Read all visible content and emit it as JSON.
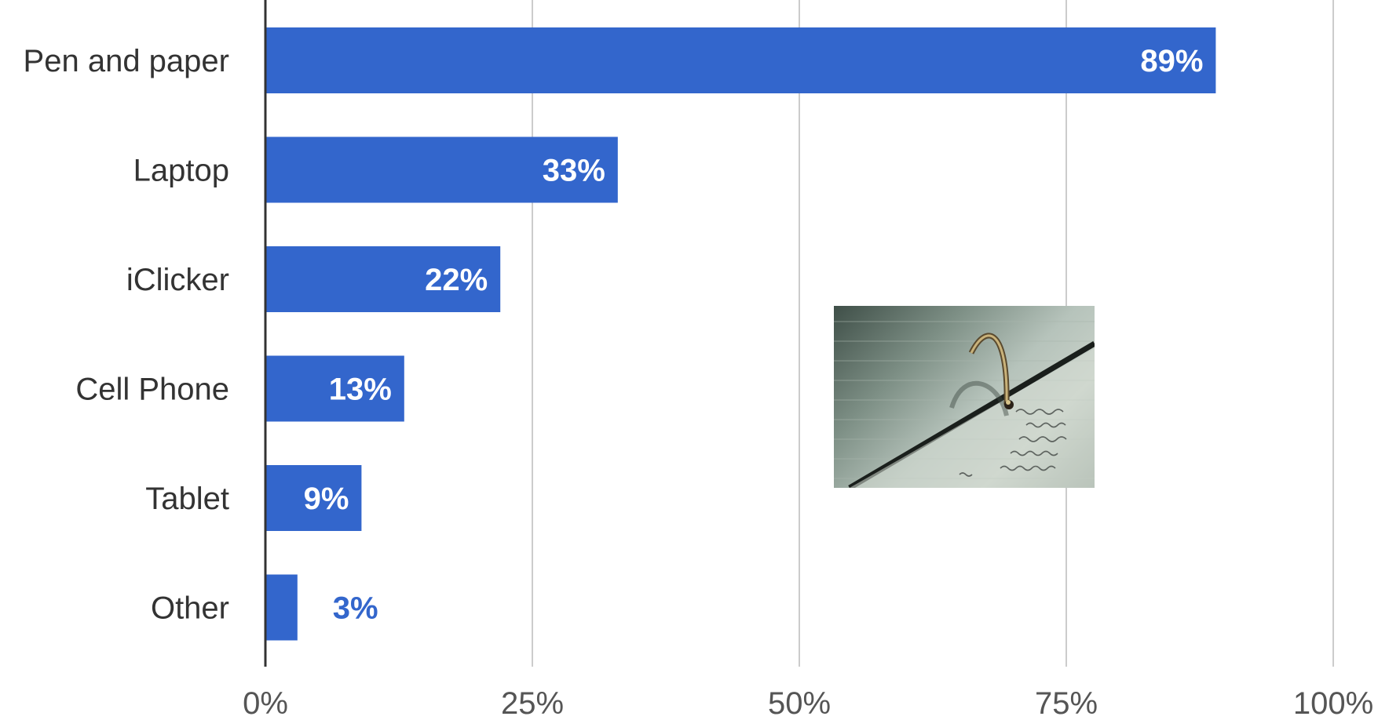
{
  "chart_data": {
    "type": "bar",
    "orientation": "horizontal",
    "categories": [
      "Pen and paper",
      "Laptop",
      "iClicker",
      "Cell Phone",
      "Tablet",
      "Other"
    ],
    "values": [
      89,
      33,
      22,
      13,
      9,
      3
    ],
    "value_labels": [
      "89%",
      "33%",
      "22%",
      "13%",
      "9%",
      "3%"
    ],
    "xlim": [
      0,
      100
    ],
    "x_ticks": [
      0,
      25,
      50,
      75,
      100
    ],
    "x_tick_labels": [
      "0%",
      "25%",
      "50%",
      "75%",
      "100%"
    ],
    "grid": true,
    "bar_color": "#3366cc",
    "title": "",
    "xlabel": "",
    "ylabel": ""
  },
  "inset_image": {
    "icon": "notebook-binder-ring-photo"
  }
}
